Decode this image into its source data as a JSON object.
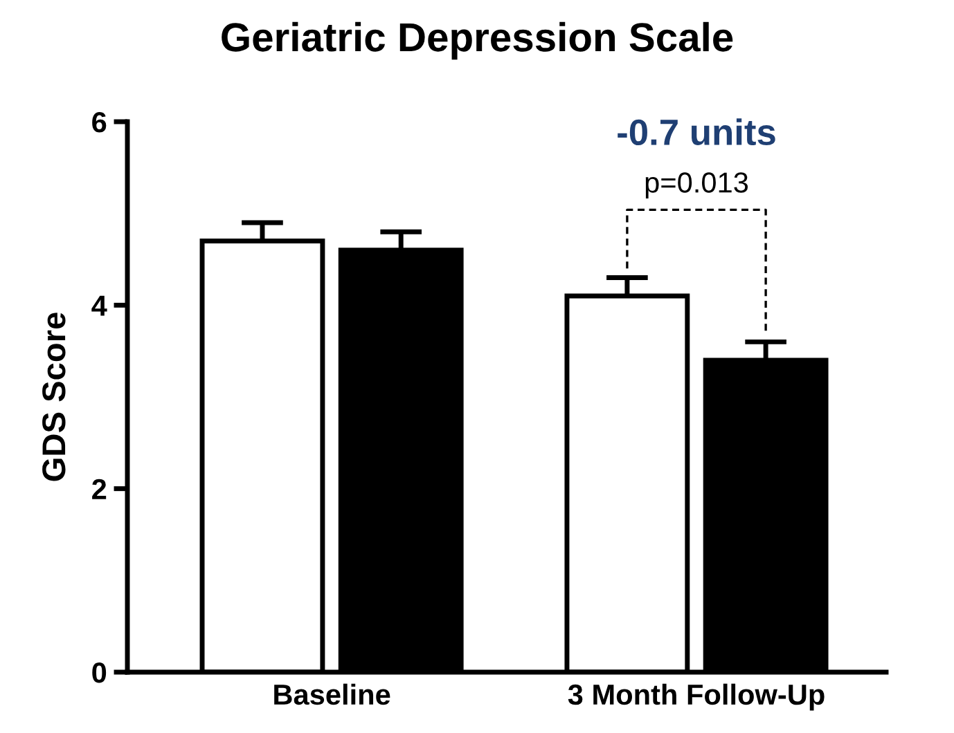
{
  "chart_data": {
    "type": "bar",
    "title": "Geriatric Depression Scale",
    "ylabel": "GDS Score",
    "categories": [
      "Baseline",
      "3 Month Follow-Up"
    ],
    "series": [
      {
        "color": "#ffffff",
        "values": [
          4.7,
          4.1
        ],
        "errors": [
          [
            4.7,
            4.9
          ],
          [
            4.1,
            4.3
          ]
        ]
      },
      {
        "color": "#000000",
        "values": [
          4.6,
          3.4
        ],
        "errors": [
          [
            4.6,
            4.8
          ],
          [
            3.4,
            3.6
          ]
        ]
      }
    ],
    "ylim": [
      0,
      6
    ],
    "yticks": [
      0,
      2,
      4,
      6
    ],
    "grid": false,
    "legend": false,
    "annotations": [
      "-0.7 units",
      "p=0.013"
    ]
  }
}
